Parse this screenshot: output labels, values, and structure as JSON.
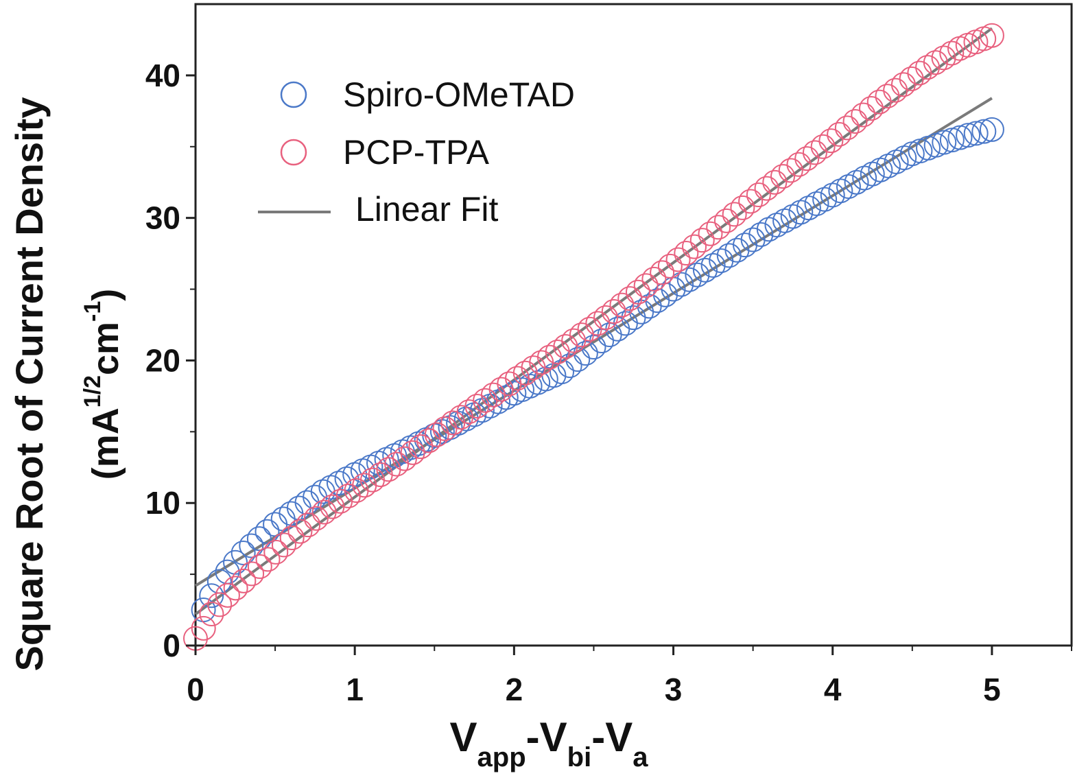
{
  "chart_data": {
    "type": "scatter",
    "title": "",
    "xlabel": {
      "main": "V",
      "parts": [
        {
          "base": "V",
          "sub": "app"
        },
        {
          "base": "-V",
          "sub": "bi"
        },
        {
          "base": "-V",
          "sub": "a"
        }
      ]
    },
    "ylabel": {
      "line1": "Square Root of Current Density",
      "line2_prefix": "(mA",
      "line2_sup1": "1/2",
      "line2_mid": "cm",
      "line2_sup2": "-1",
      "line2_suffix": ")"
    },
    "xlim": [
      0,
      5.5
    ],
    "ylim": [
      0,
      45
    ],
    "xticks": [
      0,
      1,
      2,
      3,
      4,
      5
    ],
    "xtick_labels": [
      "0",
      "1",
      "2",
      "3",
      "4",
      "5"
    ],
    "xminor": [
      0.5,
      1.5,
      2.5,
      3.5,
      4.5,
      5.5
    ],
    "yticks": [
      0,
      10,
      20,
      30,
      40
    ],
    "ytick_labels": [
      "0",
      "10",
      "20",
      "30",
      "40"
    ],
    "yminor": [
      5,
      15,
      25,
      35
    ],
    "grid": false,
    "legend_position": "top-left",
    "legend": [
      {
        "label": "Spiro-OMeTAD",
        "marker": "circle",
        "color": "#4a78c8"
      },
      {
        "label": "PCP-TPA",
        "marker": "circle",
        "color": "#e8607e"
      },
      {
        "label": "Linear Fit",
        "marker": "line",
        "color": "#7a7a7a"
      }
    ],
    "series": [
      {
        "name": "Spiro-OMeTAD",
        "color": "#4a78c8",
        "x_start": 0.05,
        "x_end": 5.0,
        "n_points": 100,
        "anchors_x": [
          0.05,
          0.15,
          0.3,
          0.5,
          0.8,
          1.0,
          1.3,
          1.6,
          2.0,
          2.3,
          2.6,
          3.0,
          3.3,
          3.6,
          3.9,
          4.2,
          4.5,
          4.7,
          4.85,
          5.0
        ],
        "anchors_y": [
          2.5,
          4.5,
          6.5,
          8.5,
          10.8,
          12.0,
          13.6,
          15.3,
          17.7,
          19.2,
          21.8,
          25.0,
          27.0,
          29.2,
          31.0,
          32.8,
          34.5,
          35.3,
          35.8,
          36.2
        ]
      },
      {
        "name": "PCP-TPA",
        "color": "#e8607e",
        "x_start": 0.0,
        "x_end": 5.0,
        "n_points": 100,
        "anchors_x": [
          0.0,
          0.05,
          0.1,
          0.2,
          0.4,
          0.6,
          0.8,
          1.0,
          1.3,
          1.6,
          2.0,
          2.3,
          2.6,
          3.0,
          3.3,
          3.6,
          4.0,
          4.3,
          4.6,
          4.8,
          5.0
        ],
        "anchors_y": [
          0.5,
          1.2,
          2.2,
          3.5,
          5.5,
          7.5,
          9.3,
          10.8,
          13.0,
          15.5,
          18.6,
          20.8,
          23.2,
          26.8,
          29.5,
          32.2,
          35.5,
          38.2,
          40.6,
          41.9,
          42.8
        ]
      }
    ],
    "fits": [
      {
        "name": "Linear Fit (Spiro-OMeTAD)",
        "color": "#7a7a7a",
        "x": [
          0,
          5.0
        ],
        "y": [
          4.2,
          38.4
        ]
      },
      {
        "name": "Linear Fit (PCP-TPA)",
        "color": "#7a7a7a",
        "x": [
          0,
          5.0
        ],
        "y": [
          2.2,
          43.3
        ]
      }
    ]
  }
}
